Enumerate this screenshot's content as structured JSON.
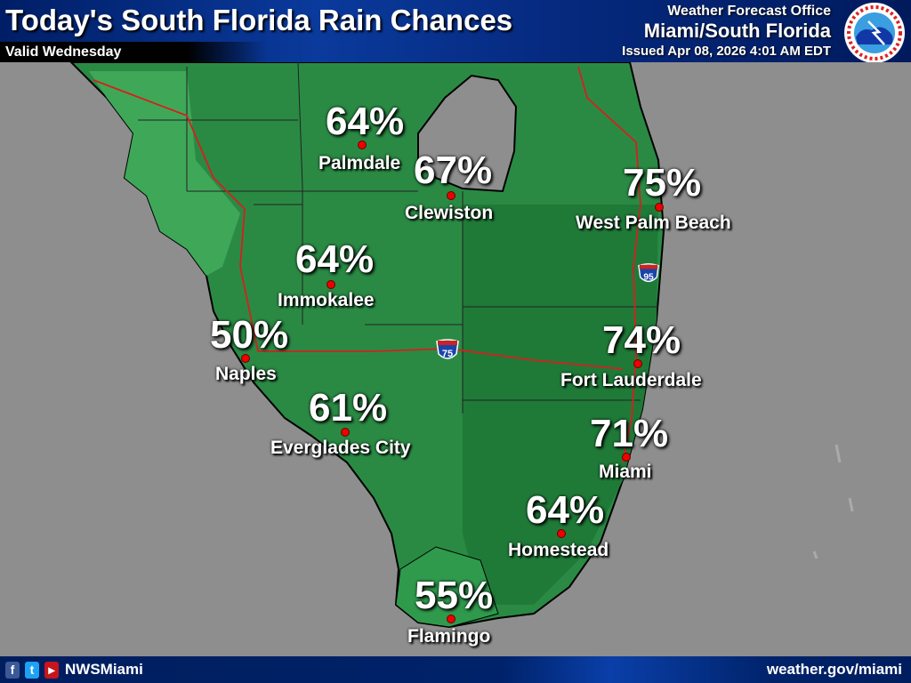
{
  "header": {
    "title": "Today's South Florida Rain Chances",
    "valid": "Valid Wednesday",
    "office_line1": "Weather Forecast Office",
    "office_line2": "Miami/South Florida",
    "issued": "Issued Apr 08, 2026 4:01 AM EDT",
    "logo_text": "NATIONAL WEATHER SERVICE"
  },
  "cities": [
    {
      "name": "Palmdale",
      "pct": "64%"
    },
    {
      "name": "Clewiston",
      "pct": "67%"
    },
    {
      "name": "West Palm Beach",
      "pct": "75%"
    },
    {
      "name": "Immokalee",
      "pct": "64%"
    },
    {
      "name": "Naples",
      "pct": "50%"
    },
    {
      "name": "Fort Lauderdale",
      "pct": "74%"
    },
    {
      "name": "Everglades City",
      "pct": "61%"
    },
    {
      "name": "Miami",
      "pct": "71%"
    },
    {
      "name": "Homestead",
      "pct": "64%"
    },
    {
      "name": "Flamingo",
      "pct": "55%"
    }
  ],
  "highways": {
    "i75": "75",
    "i95": "95"
  },
  "footer": {
    "handle": "NWSMiami",
    "url": "weather.gov/miami"
  },
  "colors": {
    "land": "#2e8b45",
    "land_dark": "#1f7a3a",
    "water": "#8e8e8e",
    "header": "#002a78",
    "route": "#d42020"
  }
}
